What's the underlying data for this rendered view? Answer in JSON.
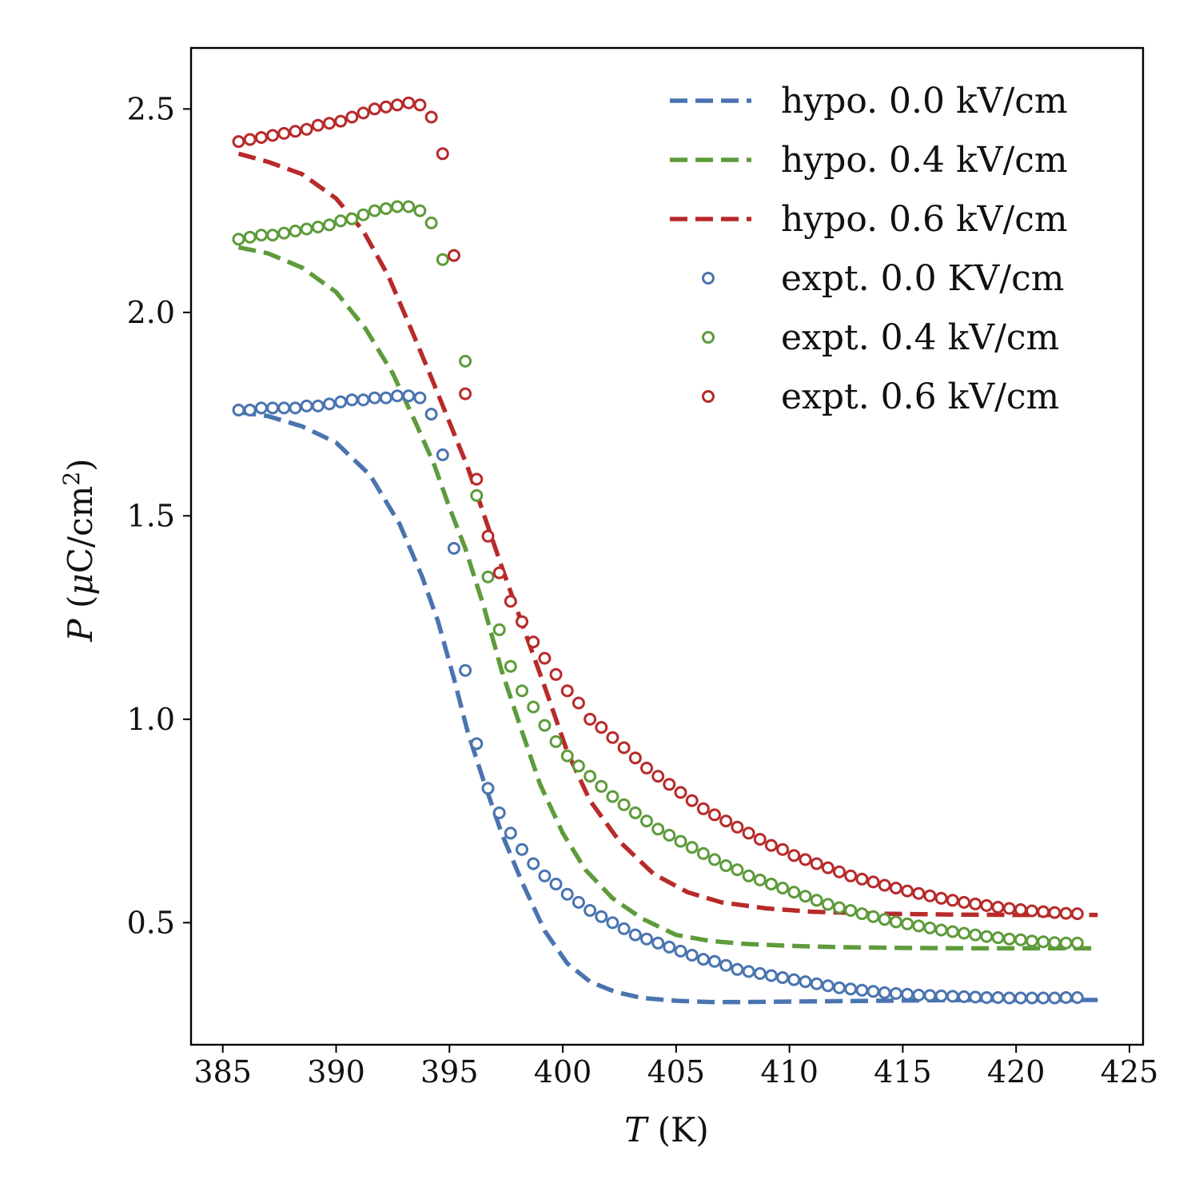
{
  "chart_data": {
    "type": "line",
    "title": "",
    "xlabel_var": "T",
    "xlabel_unit": " (K)",
    "ylabel_var": "P",
    "ylabel_mu": "μ",
    "ylabel_unit_pre": " (",
    "ylabel_unit_mid": "C/cm",
    "ylabel_sup": "2",
    "ylabel_unit_post": ")",
    "xlim": [
      383.6,
      425.6
    ],
    "ylim": [
      0.2,
      2.65
    ],
    "xticks": [
      385,
      390,
      395,
      400,
      405,
      410,
      415,
      420,
      425
    ],
    "xtick_labels": [
      "385",
      "390",
      "395",
      "400",
      "405",
      "410",
      "415",
      "420",
      "425"
    ],
    "yticks": [
      0.5,
      1.0,
      1.5,
      2.0,
      2.5
    ],
    "ytick_labels": [
      "0.5",
      "1.0",
      "1.5",
      "2.0",
      "2.5"
    ],
    "legend_position": "top-right",
    "grid": false,
    "series": [
      {
        "name": "hypo. 0.0 kV/cm",
        "style": "dashed",
        "color": "#4a74b0",
        "x": [
          385.7,
          387.0,
          388.5,
          390.0,
          391.5,
          392.8,
          393.8,
          394.5,
          395.2,
          395.8,
          396.5,
          397.3,
          398.2,
          399.2,
          400.2,
          401.2,
          402.3,
          403.5,
          405.0,
          406.5,
          408.0,
          410.0,
          412.0,
          414.0,
          416.0,
          418.0,
          420.0,
          422.0,
          423.6
        ],
        "y": [
          1.755,
          1.745,
          1.72,
          1.68,
          1.6,
          1.48,
          1.35,
          1.24,
          1.1,
          0.97,
          0.85,
          0.72,
          0.6,
          0.48,
          0.4,
          0.355,
          0.33,
          0.315,
          0.308,
          0.305,
          0.305,
          0.306,
          0.307,
          0.308,
          0.309,
          0.31,
          0.31,
          0.31,
          0.31
        ]
      },
      {
        "name": "hypo. 0.4 kV/cm",
        "style": "dashed",
        "color": "#5e9b3b",
        "x": [
          385.7,
          387.0,
          388.5,
          390.0,
          391.3,
          392.5,
          393.5,
          394.3,
          395.0,
          395.7,
          396.5,
          397.3,
          398.2,
          399.0,
          400.0,
          401.0,
          402.2,
          403.5,
          405.0,
          406.5,
          408.0,
          410.0,
          412.0,
          415.0,
          418.0,
          421.0,
          423.6
        ],
        "y": [
          2.16,
          2.145,
          2.11,
          2.05,
          1.96,
          1.85,
          1.73,
          1.63,
          1.52,
          1.42,
          1.28,
          1.12,
          0.97,
          0.84,
          0.72,
          0.63,
          0.56,
          0.51,
          0.47,
          0.455,
          0.448,
          0.443,
          0.44,
          0.438,
          0.437,
          0.437,
          0.437
        ]
      },
      {
        "name": "hypo. 0.6 kV/cm",
        "style": "dashed",
        "color": "#b82a2a",
        "x": [
          385.7,
          387.0,
          388.5,
          390.0,
          391.2,
          392.3,
          393.3,
          394.2,
          395.0,
          395.8,
          396.6,
          397.4,
          398.3,
          399.2,
          400.2,
          401.2,
          402.5,
          404.0,
          405.5,
          407.0,
          409.0,
          411.0,
          414.0,
          417.0,
          420.0,
          423.6
        ],
        "y": [
          2.39,
          2.37,
          2.34,
          2.28,
          2.2,
          2.09,
          1.96,
          1.84,
          1.73,
          1.62,
          1.49,
          1.36,
          1.22,
          1.08,
          0.92,
          0.8,
          0.7,
          0.62,
          0.575,
          0.55,
          0.535,
          0.527,
          0.522,
          0.52,
          0.519,
          0.519
        ]
      },
      {
        "name": "expt. 0.0 KV/cm",
        "style": "markers",
        "color": "#4a74b0",
        "x": [
          385.7,
          386.2,
          386.7,
          387.2,
          387.7,
          388.2,
          388.7,
          389.2,
          389.7,
          390.2,
          390.7,
          391.2,
          391.7,
          392.2,
          392.7,
          393.2,
          393.7,
          394.2,
          394.7,
          395.2,
          395.7,
          396.2,
          396.7,
          397.2,
          397.7,
          398.2,
          398.7,
          399.2,
          399.7,
          400.2,
          400.7,
          401.2,
          401.7,
          402.2,
          402.7,
          403.2,
          403.7,
          404.2,
          404.7,
          405.2,
          405.7,
          406.2,
          406.7,
          407.2,
          407.7,
          408.2,
          408.7,
          409.2,
          409.7,
          410.2,
          410.7,
          411.2,
          411.7,
          412.2,
          412.7,
          413.2,
          413.7,
          414.2,
          414.7,
          415.2,
          415.7,
          416.2,
          416.7,
          417.2,
          417.7,
          418.2,
          418.7,
          419.2,
          419.7,
          420.2,
          420.7,
          421.2,
          421.7,
          422.2,
          422.7
        ],
        "y": [
          1.76,
          1.76,
          1.765,
          1.765,
          1.765,
          1.765,
          1.77,
          1.77,
          1.775,
          1.78,
          1.785,
          1.785,
          1.79,
          1.79,
          1.795,
          1.795,
          1.79,
          1.75,
          1.65,
          1.42,
          1.12,
          0.94,
          0.83,
          0.77,
          0.72,
          0.68,
          0.645,
          0.615,
          0.595,
          0.57,
          0.55,
          0.53,
          0.515,
          0.5,
          0.485,
          0.47,
          0.46,
          0.45,
          0.44,
          0.43,
          0.42,
          0.41,
          0.405,
          0.395,
          0.385,
          0.38,
          0.375,
          0.37,
          0.365,
          0.36,
          0.355,
          0.35,
          0.345,
          0.34,
          0.337,
          0.334,
          0.331,
          0.328,
          0.326,
          0.324,
          0.322,
          0.321,
          0.32,
          0.319,
          0.318,
          0.317,
          0.316,
          0.316,
          0.315,
          0.315,
          0.315,
          0.315,
          0.315,
          0.316,
          0.316
        ]
      },
      {
        "name": "expt. 0.4 kV/cm",
        "style": "markers",
        "color": "#5e9b3b",
        "x": [
          385.7,
          386.2,
          386.7,
          387.2,
          387.7,
          388.2,
          388.7,
          389.2,
          389.7,
          390.2,
          390.7,
          391.2,
          391.7,
          392.2,
          392.7,
          393.2,
          393.7,
          394.2,
          394.7,
          395.2,
          395.7,
          396.2,
          396.7,
          397.2,
          397.7,
          398.2,
          398.7,
          399.2,
          399.7,
          400.2,
          400.7,
          401.2,
          401.7,
          402.2,
          402.7,
          403.2,
          403.7,
          404.2,
          404.7,
          405.2,
          405.7,
          406.2,
          406.7,
          407.2,
          407.7,
          408.2,
          408.7,
          409.2,
          409.7,
          410.2,
          410.7,
          411.2,
          411.7,
          412.2,
          412.7,
          413.2,
          413.7,
          414.2,
          414.7,
          415.2,
          415.7,
          416.2,
          416.7,
          417.2,
          417.7,
          418.2,
          418.7,
          419.2,
          419.7,
          420.2,
          420.7,
          421.2,
          421.7,
          422.2,
          422.7
        ],
        "y": [
          2.18,
          2.185,
          2.19,
          2.19,
          2.195,
          2.2,
          2.205,
          2.21,
          2.215,
          2.225,
          2.23,
          2.24,
          2.25,
          2.255,
          2.26,
          2.26,
          2.25,
          2.22,
          2.13,
          2.14,
          1.88,
          1.55,
          1.35,
          1.22,
          1.13,
          1.07,
          1.03,
          0.985,
          0.945,
          0.91,
          0.885,
          0.86,
          0.835,
          0.81,
          0.79,
          0.77,
          0.75,
          0.73,
          0.715,
          0.7,
          0.685,
          0.67,
          0.655,
          0.64,
          0.63,
          0.615,
          0.605,
          0.595,
          0.585,
          0.575,
          0.565,
          0.555,
          0.545,
          0.537,
          0.53,
          0.522,
          0.515,
          0.508,
          0.502,
          0.497,
          0.492,
          0.487,
          0.482,
          0.478,
          0.474,
          0.47,
          0.466,
          0.463,
          0.46,
          0.458,
          0.455,
          0.453,
          0.451,
          0.45,
          0.45
        ]
      },
      {
        "name": "expt. 0.6 kV/cm",
        "style": "markers",
        "color": "#b82a2a",
        "x": [
          385.7,
          386.2,
          386.7,
          387.2,
          387.7,
          388.2,
          388.7,
          389.2,
          389.7,
          390.2,
          390.7,
          391.2,
          391.7,
          392.2,
          392.7,
          393.2,
          393.7,
          394.2,
          394.7,
          395.2,
          395.7,
          396.2,
          396.7,
          397.2,
          397.7,
          398.2,
          398.7,
          399.2,
          399.7,
          400.2,
          400.7,
          401.2,
          401.7,
          402.2,
          402.7,
          403.2,
          403.7,
          404.2,
          404.7,
          405.2,
          405.7,
          406.2,
          406.7,
          407.2,
          407.7,
          408.2,
          408.7,
          409.2,
          409.7,
          410.2,
          410.7,
          411.2,
          411.7,
          412.2,
          412.7,
          413.2,
          413.7,
          414.2,
          414.7,
          415.2,
          415.7,
          416.2,
          416.7,
          417.2,
          417.7,
          418.2,
          418.7,
          419.2,
          419.7,
          420.2,
          420.7,
          421.2,
          421.7,
          422.2,
          422.7
        ],
        "y": [
          2.42,
          2.425,
          2.43,
          2.435,
          2.44,
          2.445,
          2.45,
          2.46,
          2.465,
          2.47,
          2.48,
          2.49,
          2.5,
          2.505,
          2.51,
          2.515,
          2.51,
          2.48,
          2.39,
          2.14,
          1.8,
          1.59,
          1.45,
          1.36,
          1.29,
          1.24,
          1.19,
          1.15,
          1.11,
          1.07,
          1.04,
          1.0,
          0.98,
          0.955,
          0.93,
          0.905,
          0.88,
          0.86,
          0.84,
          0.82,
          0.8,
          0.78,
          0.765,
          0.75,
          0.735,
          0.72,
          0.705,
          0.69,
          0.68,
          0.665,
          0.655,
          0.645,
          0.635,
          0.625,
          0.615,
          0.607,
          0.6,
          0.592,
          0.585,
          0.578,
          0.572,
          0.566,
          0.56,
          0.555,
          0.55,
          0.546,
          0.542,
          0.538,
          0.535,
          0.532,
          0.529,
          0.527,
          0.525,
          0.523,
          0.522
        ]
      }
    ]
  }
}
